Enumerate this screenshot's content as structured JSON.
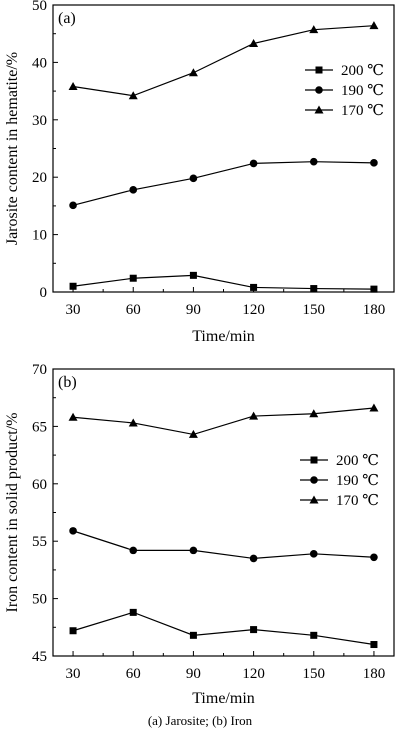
{
  "caption": "(a) Jarosite; (b) Iron",
  "chart_data": [
    {
      "type": "line",
      "panel_label": "(a)",
      "title": "",
      "xlabel": "Time/min",
      "ylabel": "Jarosite content in hematite/%",
      "x": [
        30,
        60,
        90,
        120,
        150,
        180
      ],
      "xlim": [
        20,
        190
      ],
      "ylim": [
        0,
        50
      ],
      "xticks": [
        30,
        60,
        90,
        120,
        150,
        180
      ],
      "yticks": [
        0,
        10,
        20,
        30,
        40,
        50
      ],
      "grid": false,
      "legend_position": "right",
      "series": [
        {
          "name": "200 ℃",
          "marker": "square",
          "values": [
            1.0,
            2.4,
            2.9,
            0.8,
            0.6,
            0.5
          ]
        },
        {
          "name": "190 ℃",
          "marker": "circle",
          "values": [
            15.1,
            17.8,
            19.8,
            22.4,
            22.7,
            22.5
          ]
        },
        {
          "name": "170 ℃",
          "marker": "triangle",
          "values": [
            35.8,
            34.2,
            38.2,
            43.3,
            45.7,
            46.4
          ]
        }
      ]
    },
    {
      "type": "line",
      "panel_label": "(b)",
      "title": "",
      "xlabel": "Time/min",
      "ylabel": "Iron content in solid product/%",
      "x": [
        30,
        60,
        90,
        120,
        150,
        180
      ],
      "xlim": [
        20,
        190
      ],
      "ylim": [
        45,
        70
      ],
      "xticks": [
        30,
        60,
        90,
        120,
        150,
        180
      ],
      "yticks": [
        45,
        50,
        55,
        60,
        65,
        70
      ],
      "grid": false,
      "legend_position": "right",
      "series": [
        {
          "name": "200 ℃",
          "marker": "square",
          "values": [
            47.2,
            48.8,
            46.8,
            47.3,
            46.8,
            46.0
          ]
        },
        {
          "name": "190 ℃",
          "marker": "circle",
          "values": [
            55.9,
            54.2,
            54.2,
            53.5,
            53.9,
            53.6
          ]
        },
        {
          "name": "170 ℃",
          "marker": "triangle",
          "values": [
            65.8,
            65.3,
            64.3,
            65.9,
            66.1,
            66.6
          ]
        }
      ]
    }
  ]
}
